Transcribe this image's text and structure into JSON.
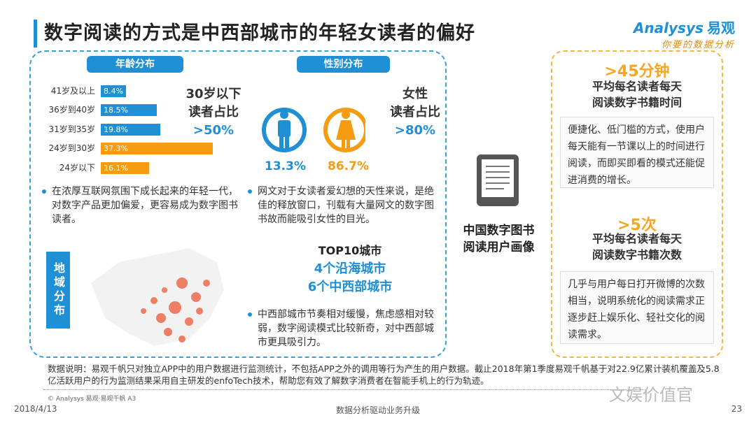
{
  "title": "数字阅读的方式是中西部城市的年轻女读者的偏好",
  "logo": {
    "brand_en": "Analysys",
    "brand_cn": "易观",
    "slogan": "你要的数据分析"
  },
  "age": {
    "header": "年龄分布",
    "rows": [
      {
        "label": "41岁及以上",
        "value": "8.4%",
        "pct": 8.4,
        "color": "#1f8fd6"
      },
      {
        "label": "36岁到40岁",
        "value": "18.5%",
        "pct": 18.5,
        "color": "#1f8fd6"
      },
      {
        "label": "31岁到35岁",
        "value": "19.8%",
        "pct": 19.8,
        "color": "#1f8fd6"
      },
      {
        "label": "24岁到30岁",
        "value": "37.3%",
        "pct": 37.3,
        "color": "#f59c12"
      },
      {
        "label": "24岁以下",
        "value": "16.1%",
        "pct": 16.1,
        "color": "#f59c12"
      }
    ],
    "highlight_line1": "30岁以下",
    "highlight_line2": "读者占比",
    "highlight_value": ">50%",
    "bullet": "在浓厚互联网氛围下成长起来的年轻一代，对数字产品更加偏爱，更容易成为数字图书读者。"
  },
  "gender": {
    "header": "性别分布",
    "male_pct": "13.3%",
    "female_pct": "86.7%",
    "highlight_line1": "女性",
    "highlight_line2": "读者占比",
    "highlight_value": ">80%",
    "bullet": "网文对于女读者爱幻想的天性来说，是绝佳的释放窗口，刊载有大量网文的数字图书故而能吸引女性的目光。"
  },
  "region": {
    "label": "地域分布",
    "top_title": "TOP10城市",
    "line1": "4个沿海城市",
    "line2": "6个中西部城市",
    "bullet": "中西部城市节奏相对缓慢，焦虑感相对较弱，数字阅读模式比较新奇，对中西部城市更具吸引力。"
  },
  "center": {
    "line1": "中国数字图书",
    "line2": "阅读用户画像"
  },
  "right": {
    "stat1": {
      "value": ">45分钟",
      "line1": "平均每名读者每天",
      "line2": "阅读数字书籍时间",
      "desc": "便捷化、低门槛的方式，使用户每天能有一节课以上的时间进行阅读，而即买即看的模式还能促进消费的增长。"
    },
    "stat2": {
      "value": ">5次",
      "line1": "平均每名读者每天",
      "line2": "阅读数字书籍次数",
      "desc": "几乎与用户每日打开微博的次数相当，说明系统化的阅读需求正逐步赶上娱乐化、轻社交化的阅读需求。"
    }
  },
  "footnote": "数据说明：易观千帆只对独立APP中的用户数据进行监测统计，不包括APP之外的调用等行为产生的用户数据。截止2018年第1季度易观千帆基于对22.9亿累计装机覆盖及5.8亿活跃用户的行为监测结果采用自主研发的enfoTech技术，帮助您有效了解数字消费者在智能手机上的行为轨迹。",
  "copyright": "© Analysys 易观·易观千帆 A3",
  "footer": {
    "date": "2018/4/13",
    "center": "数据分析驱动业务升级",
    "page": "23"
  },
  "watermark": "文娱价值官",
  "colors": {
    "blue": "#1f8fd6",
    "orange": "#f59c12"
  }
}
